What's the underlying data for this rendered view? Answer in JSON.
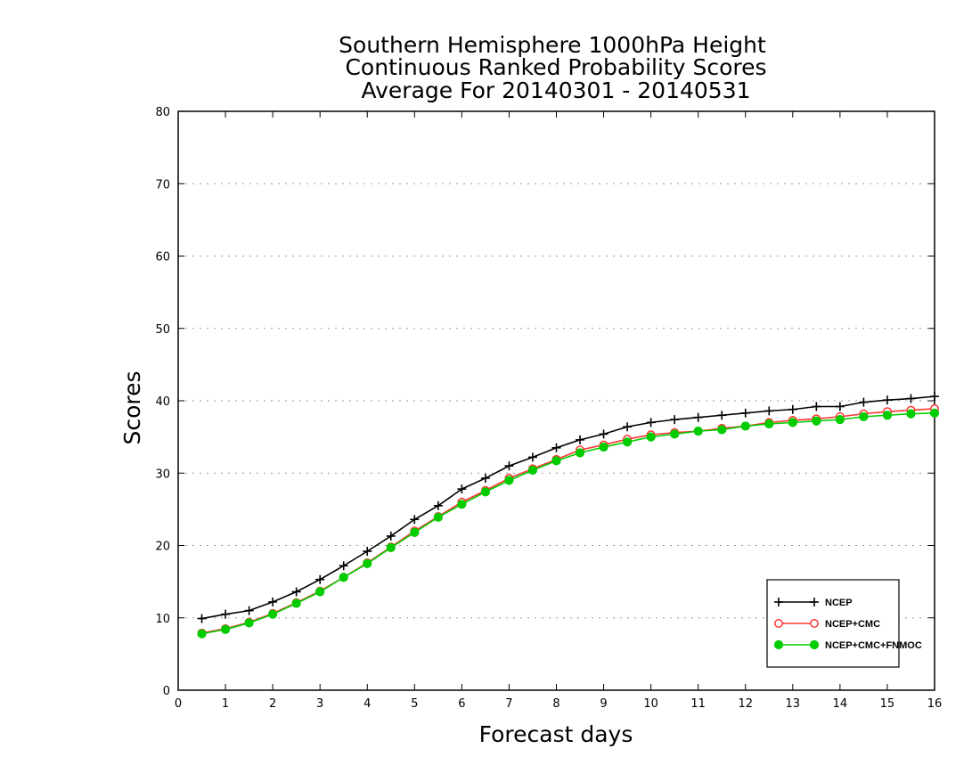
{
  "chart_data": {
    "type": "line",
    "title_lines": [
      "Southern Hemisphere 1000hPa Height",
      "Continuous Ranked Probability Scores",
      "Average For 20140301 - 20140531"
    ],
    "xlabel": "Forecast days",
    "ylabel": "Scores",
    "xlim": [
      0,
      16
    ],
    "ylim": [
      0,
      80
    ],
    "x_ticks": [
      "0",
      "1",
      "2",
      "3",
      "4",
      "5",
      "6",
      "7",
      "8",
      "9",
      "10",
      "11",
      "12",
      "13",
      "14",
      "15",
      "16"
    ],
    "y_ticks": [
      "0",
      "10",
      "20",
      "30",
      "40",
      "50",
      "60",
      "70",
      "80"
    ],
    "grid": "horizontal dotted",
    "legend_position": "bottom-right",
    "x": [
      0.5,
      1,
      1.5,
      2,
      2.5,
      3,
      3.5,
      4,
      4.5,
      5,
      5.5,
      6,
      6.5,
      7,
      7.5,
      8,
      8.5,
      9,
      9.5,
      10,
      10.5,
      11,
      11.5,
      12,
      12.5,
      13,
      13.5,
      14,
      14.5,
      15,
      15.5,
      16
    ],
    "series": [
      {
        "name": "NCEP",
        "color": "#000000",
        "marker": "plus",
        "values": [
          9.9,
          10.5,
          11.0,
          12.2,
          13.6,
          15.3,
          17.2,
          19.2,
          21.3,
          23.6,
          25.5,
          27.8,
          29.3,
          31.0,
          32.2,
          33.5,
          34.6,
          35.4,
          36.4,
          37.0,
          37.4,
          37.7,
          38.0,
          38.3,
          38.6,
          38.8,
          39.2,
          39.2,
          39.8,
          40.1,
          40.3,
          40.6
        ]
      },
      {
        "name": "NCEP+CMC",
        "color": "#ff3333",
        "marker": "open-circle",
        "values": [
          7.9,
          8.5,
          9.4,
          10.6,
          12.1,
          13.7,
          15.6,
          17.6,
          19.8,
          22.0,
          24.0,
          26.0,
          27.6,
          29.3,
          30.6,
          31.9,
          33.2,
          33.9,
          34.7,
          35.3,
          35.6,
          35.8,
          36.2,
          36.5,
          37.0,
          37.3,
          37.5,
          37.8,
          38.2,
          38.5,
          38.7,
          38.9
        ]
      },
      {
        "name": "NCEP+CMC+FNMOC",
        "color": "#00cc00",
        "marker": "filled-circle",
        "values": [
          7.8,
          8.4,
          9.3,
          10.5,
          12.0,
          13.6,
          15.6,
          17.5,
          19.7,
          21.8,
          23.9,
          25.7,
          27.4,
          29.0,
          30.4,
          31.7,
          32.8,
          33.6,
          34.3,
          35.0,
          35.4,
          35.8,
          36.0,
          36.5,
          36.8,
          37.0,
          37.2,
          37.4,
          37.8,
          38.0,
          38.2,
          38.3
        ]
      }
    ]
  }
}
